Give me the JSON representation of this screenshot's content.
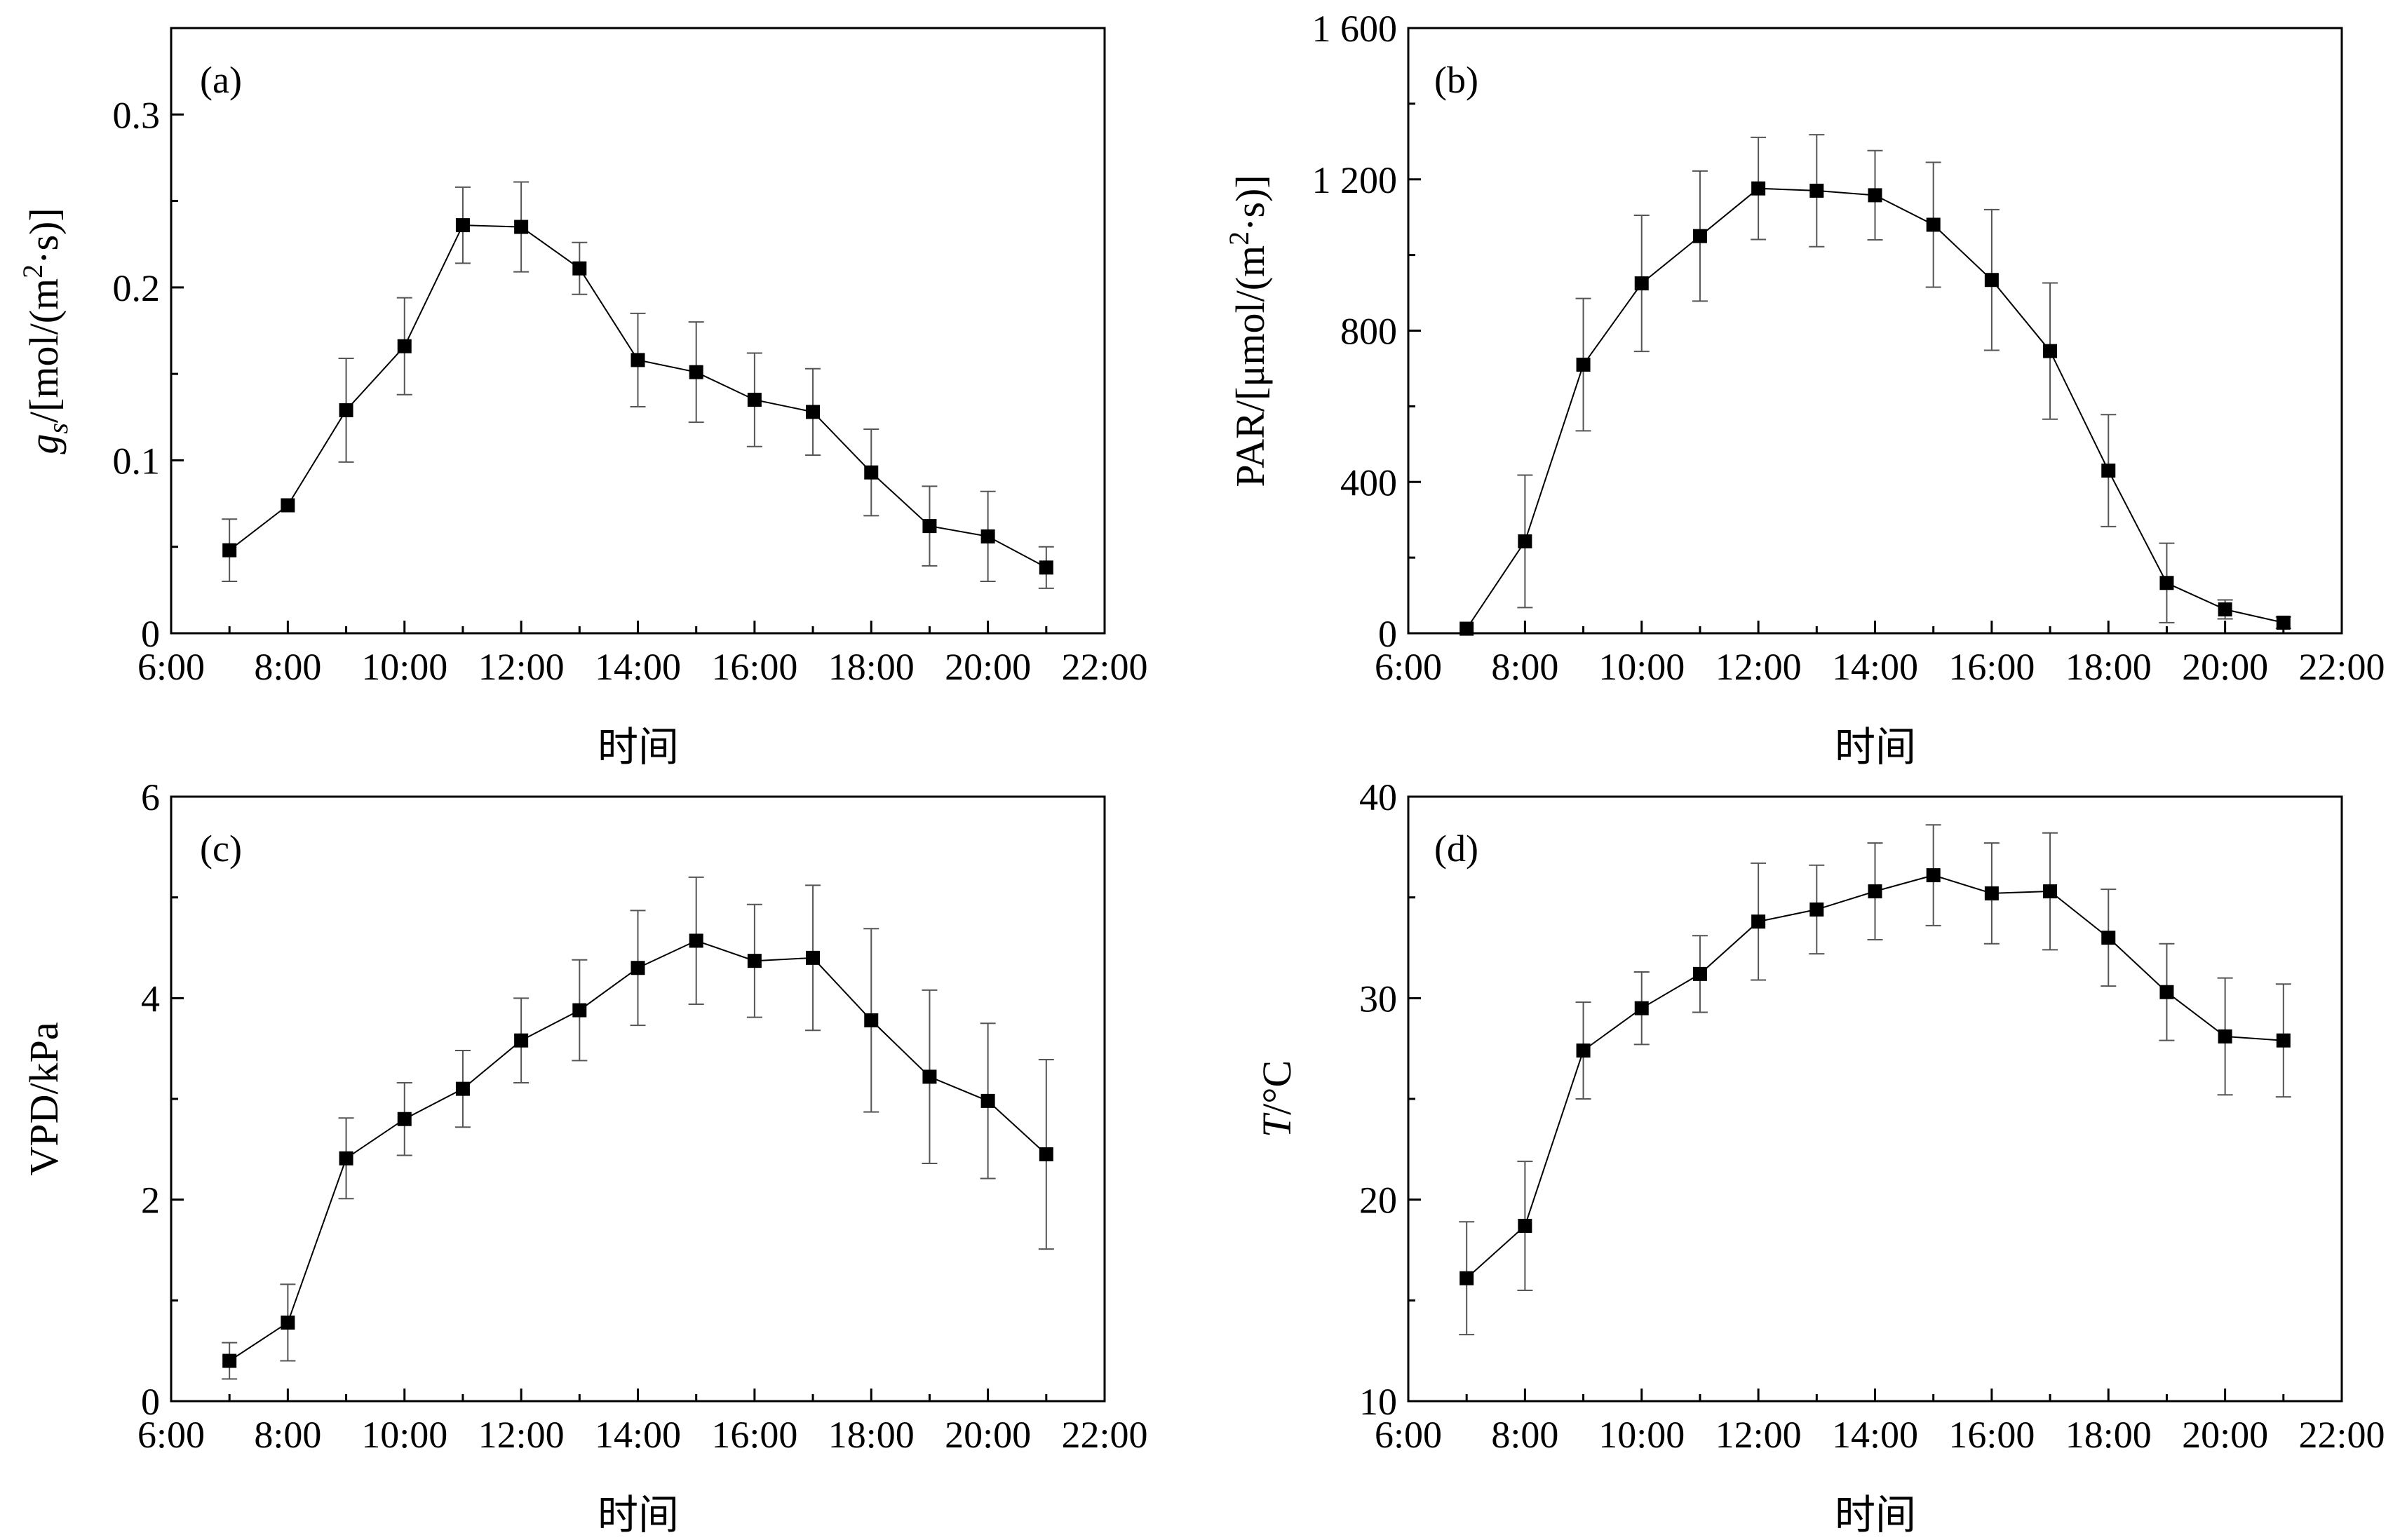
{
  "charts": {
    "a": {
      "tag": "(a)",
      "ylabel_main": "g",
      "ylabel_sub": "s",
      "ylabel_rest": "/[mol/(m",
      "ylabel_sup": "2",
      "ylabel_end": "·s)]",
      "xlabel": "时间",
      "xticks": [
        "6:00",
        "8:00",
        "10:00",
        "12:00",
        "14:00",
        "16:00",
        "18:00",
        "20:00",
        "22:00"
      ],
      "yticks": [
        "0",
        "0.1",
        "0.2",
        "0.3"
      ]
    },
    "b": {
      "tag": "(b)",
      "ylabel_rest": "PAR/[μmol/(m",
      "ylabel_sup": "2",
      "ylabel_end": "·s)]",
      "xlabel": "时间",
      "xticks": [
        "6:00",
        "8:00",
        "10:00",
        "12:00",
        "14:00",
        "16:00",
        "18:00",
        "20:00",
        "22:00"
      ],
      "yticks": [
        "0",
        "400",
        "800",
        "1 200",
        "1 600"
      ]
    },
    "c": {
      "tag": "(c)",
      "ylabel": "VPD/kPa",
      "xlabel": "时间",
      "xticks": [
        "6:00",
        "8:00",
        "10:00",
        "12:00",
        "14:00",
        "16:00",
        "18:00",
        "20:00",
        "22:00"
      ],
      "yticks": [
        "0",
        "2",
        "4",
        "6"
      ]
    },
    "d": {
      "tag": "(d)",
      "ylabel_italic": "T",
      "ylabel_rest": "/°C",
      "xlabel": "时间",
      "xticks": [
        "6:00",
        "8:00",
        "10:00",
        "12:00",
        "14:00",
        "16:00",
        "18:00",
        "20:00",
        "22:00"
      ],
      "yticks": [
        "10",
        "20",
        "30",
        "40"
      ]
    }
  },
  "chart_data": [
    {
      "type": "line",
      "panel": "(a)",
      "ylabel": "gs/[mol/(m2·s)]",
      "xlabel": "时间",
      "xlim": [
        6,
        22
      ],
      "ylim": [
        0,
        0.35
      ],
      "x": [
        7,
        8,
        9,
        10,
        11,
        12,
        13,
        14,
        15,
        16,
        17,
        18,
        19,
        20,
        21
      ],
      "y": [
        0.048,
        0.074,
        0.129,
        0.166,
        0.236,
        0.235,
        0.211,
        0.158,
        0.151,
        0.135,
        0.128,
        0.093,
        0.062,
        0.056,
        0.038
      ],
      "err": [
        0.018,
        0.0,
        0.03,
        0.028,
        0.022,
        0.026,
        0.015,
        0.027,
        0.029,
        0.027,
        0.025,
        0.025,
        0.023,
        0.026,
        0.012
      ],
      "marker": "square",
      "color": "#000000"
    },
    {
      "type": "line",
      "panel": "(b)",
      "ylabel": "PAR/[μmol/(m2·s)]",
      "xlabel": "时间",
      "xlim": [
        6,
        22
      ],
      "ylim": [
        0,
        1600
      ],
      "x": [
        7,
        8,
        9,
        10,
        11,
        12,
        13,
        14,
        15,
        16,
        17,
        18,
        19,
        20,
        21
      ],
      "y": [
        12,
        243,
        710,
        925,
        1050,
        1176,
        1170,
        1158,
        1080,
        934,
        746,
        430,
        133,
        63,
        28
      ],
      "err": [
        0,
        175,
        175,
        180,
        172,
        135,
        148,
        118,
        165,
        186,
        180,
        148,
        105,
        25,
        15
      ],
      "marker": "square",
      "color": "#000000"
    },
    {
      "type": "line",
      "panel": "(c)",
      "ylabel": "VPD/kPa",
      "xlabel": "时间",
      "xlim": [
        6,
        22
      ],
      "ylim": [
        0,
        6
      ],
      "x": [
        7,
        8,
        9,
        10,
        11,
        12,
        13,
        14,
        15,
        16,
        17,
        18,
        19,
        20,
        21
      ],
      "y": [
        0.4,
        0.78,
        2.41,
        2.8,
        3.1,
        3.58,
        3.88,
        4.3,
        4.57,
        4.37,
        4.4,
        3.78,
        3.22,
        2.98,
        2.45
      ],
      "err": [
        0.18,
        0.38,
        0.4,
        0.36,
        0.38,
        0.42,
        0.5,
        0.57,
        0.63,
        0.56,
        0.72,
        0.91,
        0.86,
        0.77,
        0.94
      ],
      "marker": "square",
      "color": "#000000"
    },
    {
      "type": "line",
      "panel": "(d)",
      "ylabel": "T/°C",
      "xlabel": "时间",
      "xlim": [
        6,
        22
      ],
      "ylim": [
        10,
        40
      ],
      "x": [
        7,
        8,
        9,
        10,
        11,
        12,
        13,
        14,
        15,
        16,
        17,
        18,
        19,
        20,
        21
      ],
      "y": [
        16.1,
        18.7,
        27.4,
        29.5,
        31.2,
        33.8,
        34.4,
        35.3,
        36.1,
        35.2,
        35.3,
        33.0,
        30.3,
        28.1,
        27.9
      ],
      "err": [
        2.8,
        3.2,
        2.4,
        1.8,
        1.9,
        2.9,
        2.2,
        2.4,
        2.5,
        2.5,
        2.9,
        2.4,
        2.4,
        2.9,
        2.8
      ],
      "marker": "square",
      "color": "#000000"
    }
  ]
}
